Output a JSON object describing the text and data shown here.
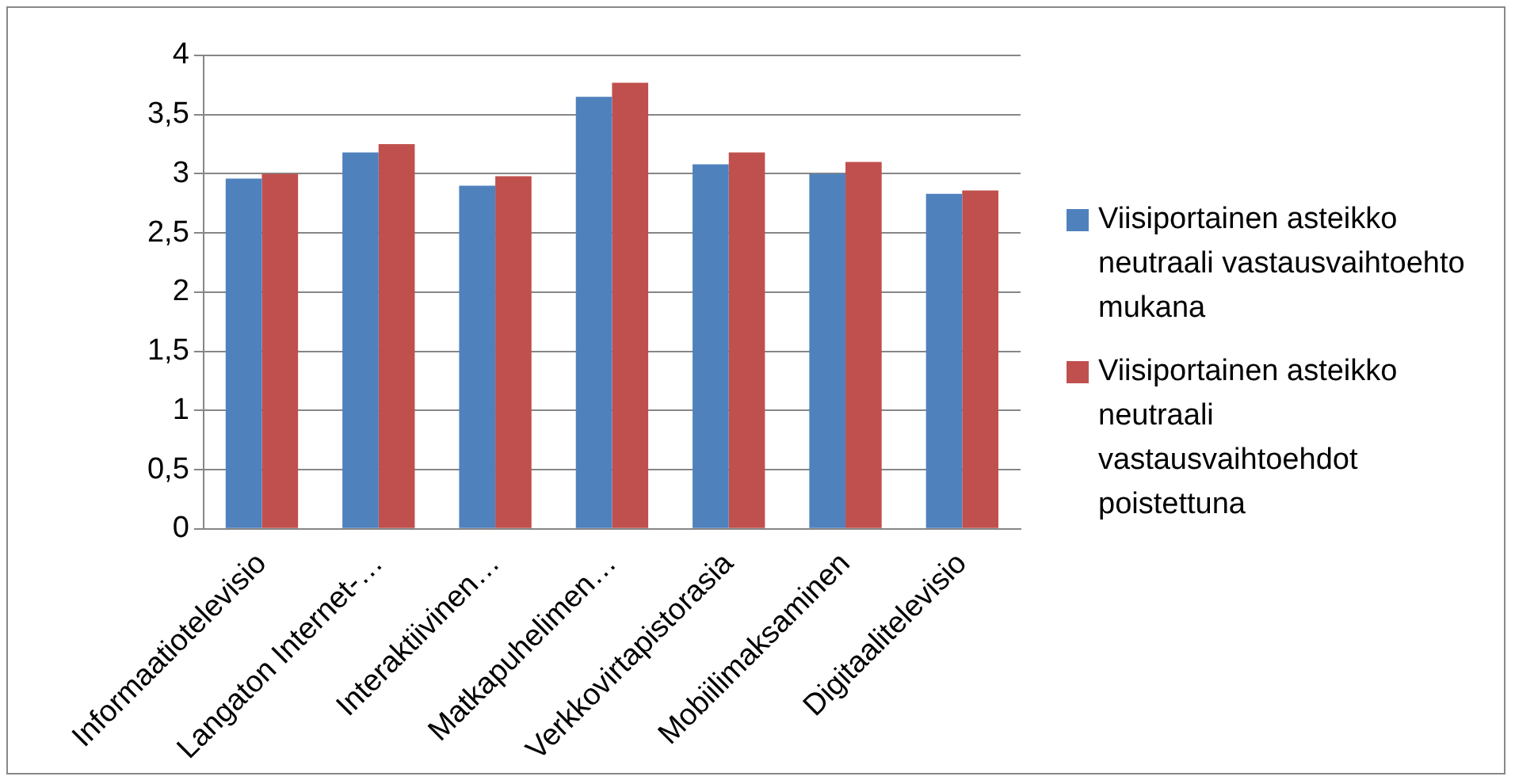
{
  "chart_data": {
    "type": "bar",
    "categories": [
      "Informaatiotelevisio",
      "Langaton Internet-…",
      "Interaktiivinen…",
      "Matkapuhelimen…",
      "Verkkovirtapistorasia",
      "Mobiilimaksaminen",
      "Digitaalitelevisio"
    ],
    "series": [
      {
        "name": "Viisiportainen asteikko neutraali vastausvaihtoehto mukana",
        "color": "#4f81bd",
        "values": [
          2.96,
          3.18,
          2.9,
          3.65,
          3.08,
          3.0,
          2.83
        ]
      },
      {
        "name": "Viisiportainen asteikko neutraali vastausvaihtoehdot poistettuna",
        "color": "#c0504d",
        "values": [
          3.0,
          3.25,
          2.98,
          3.77,
          3.18,
          3.1,
          2.86
        ]
      }
    ],
    "ylim": [
      0,
      4
    ],
    "yticks": [
      0,
      {
        "value": 0.5,
        "label": "0,5"
      },
      1,
      {
        "value": 1.5,
        "label": "1,5"
      },
      2,
      {
        "value": 2.5,
        "label": "2,5"
      },
      3,
      {
        "value": 3.5,
        "label": "3,5"
      },
      4
    ],
    "grid": "y",
    "legend": "right"
  }
}
